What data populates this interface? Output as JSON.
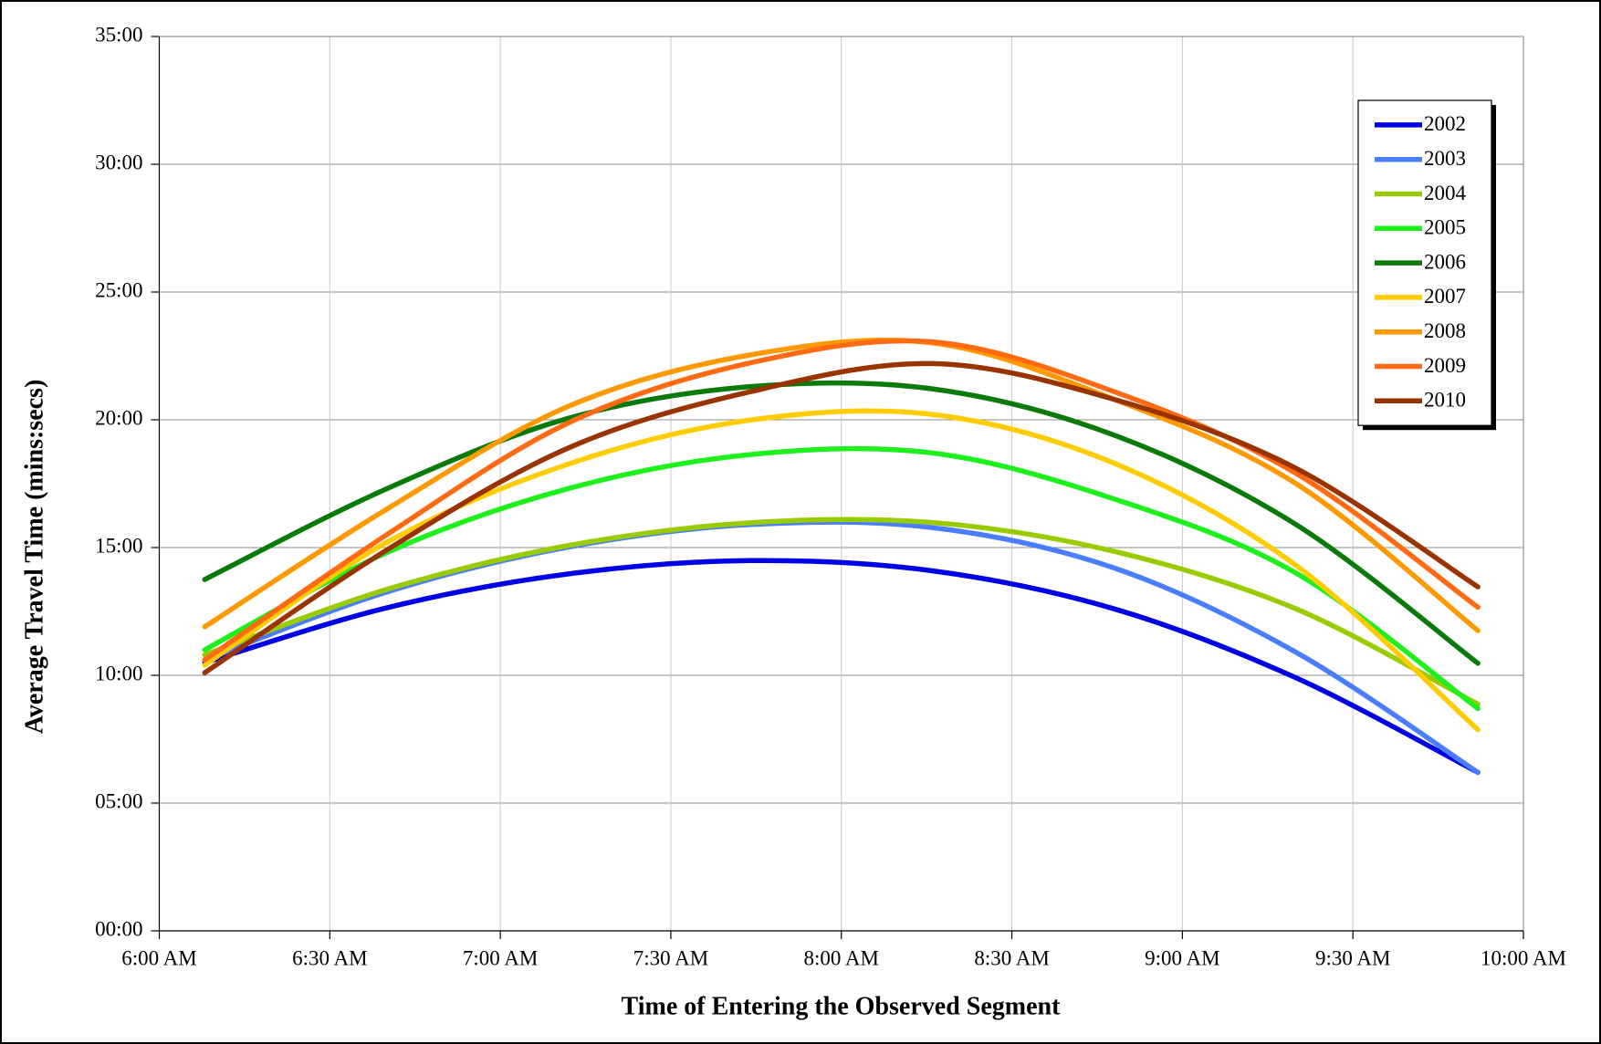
{
  "chart_data": {
    "type": "line",
    "xlabel": "Time of Entering the Observed Segment",
    "ylabel": "Average Travel Time (mins:secs)",
    "x": [
      368,
      400,
      432,
      464,
      496,
      528,
      560,
      592
    ],
    "xlim": [
      360,
      600
    ],
    "xticks": [
      {
        "value": 360,
        "label": "6:00 AM"
      },
      {
        "value": 390,
        "label": "6:30 AM"
      },
      {
        "value": 420,
        "label": "7:00 AM"
      },
      {
        "value": 450,
        "label": "7:30 AM"
      },
      {
        "value": 480,
        "label": "8:00 AM"
      },
      {
        "value": 510,
        "label": "8:30 AM"
      },
      {
        "value": 540,
        "label": "9:00 AM"
      },
      {
        "value": 570,
        "label": "9:30 AM"
      },
      {
        "value": 600,
        "label": "10:00 AM"
      }
    ],
    "ylim": [
      0,
      35
    ],
    "yticks": [
      {
        "value": 0,
        "label": "00:00"
      },
      {
        "value": 5,
        "label": "05:00"
      },
      {
        "value": 10,
        "label": "10:00"
      },
      {
        "value": 15,
        "label": "15:00"
      },
      {
        "value": 20,
        "label": "20:00"
      },
      {
        "value": 25,
        "label": "25:00"
      },
      {
        "value": 30,
        "label": "30:00"
      },
      {
        "value": 35,
        "label": "35:00"
      }
    ],
    "grid": true,
    "smooth": true,
    "legend": "upper right",
    "series": [
      {
        "name": "2002",
        "color": "#0000e6",
        "values": [
          10.5,
          12.64,
          13.97,
          14.49,
          14.09,
          12.6,
          9.9,
          6.2
        ]
      },
      {
        "name": "2003",
        "color": "#4a7dff",
        "values": [
          10.6,
          13.26,
          15.02,
          15.9,
          15.78,
          14.2,
          10.9,
          6.2
        ]
      },
      {
        "name": "2004",
        "color": "#99cc00",
        "values": [
          10.8,
          13.36,
          15.08,
          15.97,
          15.98,
          14.85,
          12.6,
          8.87
        ]
      },
      {
        "name": "2005",
        "color": "#1ef01e",
        "values": [
          11.0,
          14.8,
          17.31,
          18.64,
          18.7,
          16.9,
          14.0,
          8.7
        ]
      },
      {
        "name": "2006",
        "color": "#0a7a0a",
        "values": [
          13.75,
          17.3,
          20.06,
          21.3,
          21.21,
          19.4,
          15.9,
          10.47
        ]
      },
      {
        "name": "2007",
        "color": "#ffcc00",
        "values": [
          10.4,
          15.2,
          18.27,
          19.99,
          20.21,
          18.3,
          14.3,
          7.87
        ]
      },
      {
        "name": "2008",
        "color": "#ff9900",
        "values": [
          11.9,
          16.5,
          20.53,
          22.54,
          23.01,
          20.8,
          17.5,
          11.75
        ]
      },
      {
        "name": "2009",
        "color": "#ff6a13",
        "values": [
          10.6,
          15.5,
          19.88,
          22.23,
          23.05,
          21.1,
          17.9,
          12.66
        ]
      },
      {
        "name": "2010",
        "color": "#993300",
        "values": [
          10.1,
          14.9,
          18.9,
          21.1,
          22.2,
          20.8,
          18.1,
          13.46
        ]
      }
    ]
  }
}
